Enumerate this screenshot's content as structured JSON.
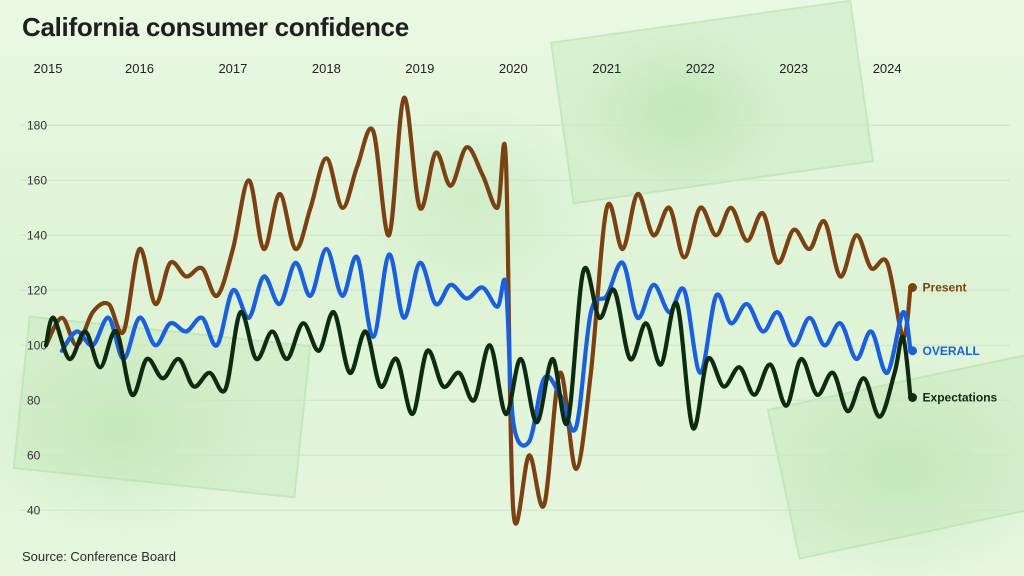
{
  "title": "California consumer confidence",
  "source": "Source: Conference Board",
  "colors": {
    "present": "#7a4212",
    "overall": "#1a5fe0",
    "expectations": "#0e2a10",
    "grid": "#cfe3c9"
  },
  "chart_data": {
    "type": "line",
    "title": "California consumer confidence",
    "xlabel": "",
    "ylabel": "",
    "ylim": [
      35,
      195
    ],
    "yticks": [
      40,
      60,
      80,
      100,
      120,
      140,
      160,
      180
    ],
    "xlim": [
      2015.0,
      2024.33
    ],
    "year_labels": [
      "2015",
      "2016",
      "2017",
      "2018",
      "2019",
      "2020",
      "2021",
      "2022",
      "2023",
      "2024"
    ],
    "grid": "horizontal",
    "legend": "end-of-line labels",
    "series": [
      {
        "name": "Present",
        "color": "#7a4212",
        "x": [
          2015.0,
          2015.17,
          2015.33,
          2015.5,
          2015.67,
          2015.83,
          2016.0,
          2016.17,
          2016.33,
          2016.5,
          2016.67,
          2016.83,
          2017.0,
          2017.17,
          2017.33,
          2017.5,
          2017.67,
          2017.83,
          2018.0,
          2018.17,
          2018.33,
          2018.5,
          2018.67,
          2018.83,
          2019.0,
          2019.17,
          2019.33,
          2019.5,
          2019.67,
          2019.83,
          2019.92,
          2020.0,
          2020.17,
          2020.33,
          2020.5,
          2020.67,
          2020.83,
          2021.0,
          2021.17,
          2021.33,
          2021.5,
          2021.67,
          2021.83,
          2022.0,
          2022.17,
          2022.33,
          2022.5,
          2022.67,
          2022.83,
          2023.0,
          2023.17,
          2023.33,
          2023.5,
          2023.67,
          2023.83,
          2024.0,
          2024.17,
          2024.25
        ],
        "values": [
          100,
          110,
          100,
          112,
          115,
          105,
          135,
          115,
          130,
          125,
          128,
          118,
          135,
          160,
          135,
          155,
          135,
          150,
          168,
          150,
          165,
          178,
          140,
          190,
          150,
          170,
          158,
          172,
          162,
          150,
          168,
          40,
          60,
          42,
          90,
          55,
          90,
          150,
          135,
          155,
          140,
          150,
          132,
          150,
          140,
          150,
          138,
          148,
          130,
          142,
          135,
          145,
          125,
          140,
          128,
          130,
          103,
          121
        ]
      },
      {
        "name": "OVERALL",
        "color": "#1a5fe0",
        "x": [
          2015.17,
          2015.33,
          2015.5,
          2015.67,
          2015.83,
          2016.0,
          2016.17,
          2016.33,
          2016.5,
          2016.67,
          2016.83,
          2017.0,
          2017.17,
          2017.33,
          2017.5,
          2017.67,
          2017.83,
          2018.0,
          2018.17,
          2018.33,
          2018.5,
          2018.67,
          2018.83,
          2019.0,
          2019.17,
          2019.33,
          2019.5,
          2019.67,
          2019.83,
          2019.92,
          2020.0,
          2020.17,
          2020.33,
          2020.5,
          2020.67,
          2020.83,
          2021.0,
          2021.17,
          2021.33,
          2021.5,
          2021.67,
          2021.83,
          2022.0,
          2022.17,
          2022.33,
          2022.5,
          2022.67,
          2022.83,
          2023.0,
          2023.17,
          2023.33,
          2023.5,
          2023.67,
          2023.83,
          2024.0,
          2024.17,
          2024.25
        ],
        "values": [
          98,
          105,
          100,
          110,
          95,
          110,
          100,
          108,
          105,
          110,
          100,
          120,
          110,
          125,
          115,
          130,
          118,
          135,
          118,
          132,
          103,
          133,
          110,
          130,
          115,
          122,
          117,
          121,
          114,
          122,
          72,
          65,
          88,
          82,
          70,
          112,
          118,
          130,
          110,
          122,
          112,
          120,
          90,
          118,
          108,
          115,
          105,
          112,
          100,
          110,
          100,
          108,
          95,
          105,
          90,
          112,
          98
        ]
      },
      {
        "name": "Expectations",
        "color": "#0e2a10",
        "x": [
          2015.0,
          2015.08,
          2015.25,
          2015.42,
          2015.58,
          2015.75,
          2015.92,
          2016.08,
          2016.25,
          2016.42,
          2016.58,
          2016.75,
          2016.92,
          2017.08,
          2017.25,
          2017.42,
          2017.58,
          2017.75,
          2017.92,
          2018.08,
          2018.25,
          2018.42,
          2018.58,
          2018.75,
          2018.92,
          2019.08,
          2019.25,
          2019.42,
          2019.58,
          2019.75,
          2019.92,
          2020.08,
          2020.25,
          2020.42,
          2020.58,
          2020.75,
          2020.92,
          2021.08,
          2021.25,
          2021.42,
          2021.58,
          2021.75,
          2021.92,
          2022.08,
          2022.25,
          2022.42,
          2022.58,
          2022.75,
          2022.92,
          2023.08,
          2023.25,
          2023.42,
          2023.58,
          2023.75,
          2023.92,
          2024.08,
          2024.17,
          2024.25
        ],
        "values": [
          100,
          110,
          95,
          105,
          92,
          105,
          82,
          95,
          88,
          95,
          85,
          90,
          84,
          112,
          95,
          105,
          95,
          108,
          98,
          112,
          90,
          105,
          85,
          95,
          75,
          98,
          85,
          90,
          80,
          100,
          75,
          95,
          72,
          95,
          72,
          127,
          110,
          120,
          95,
          108,
          93,
          115,
          70,
          95,
          85,
          92,
          82,
          93,
          78,
          95,
          82,
          90,
          76,
          88,
          74,
          90,
          103,
          81
        ]
      }
    ]
  }
}
